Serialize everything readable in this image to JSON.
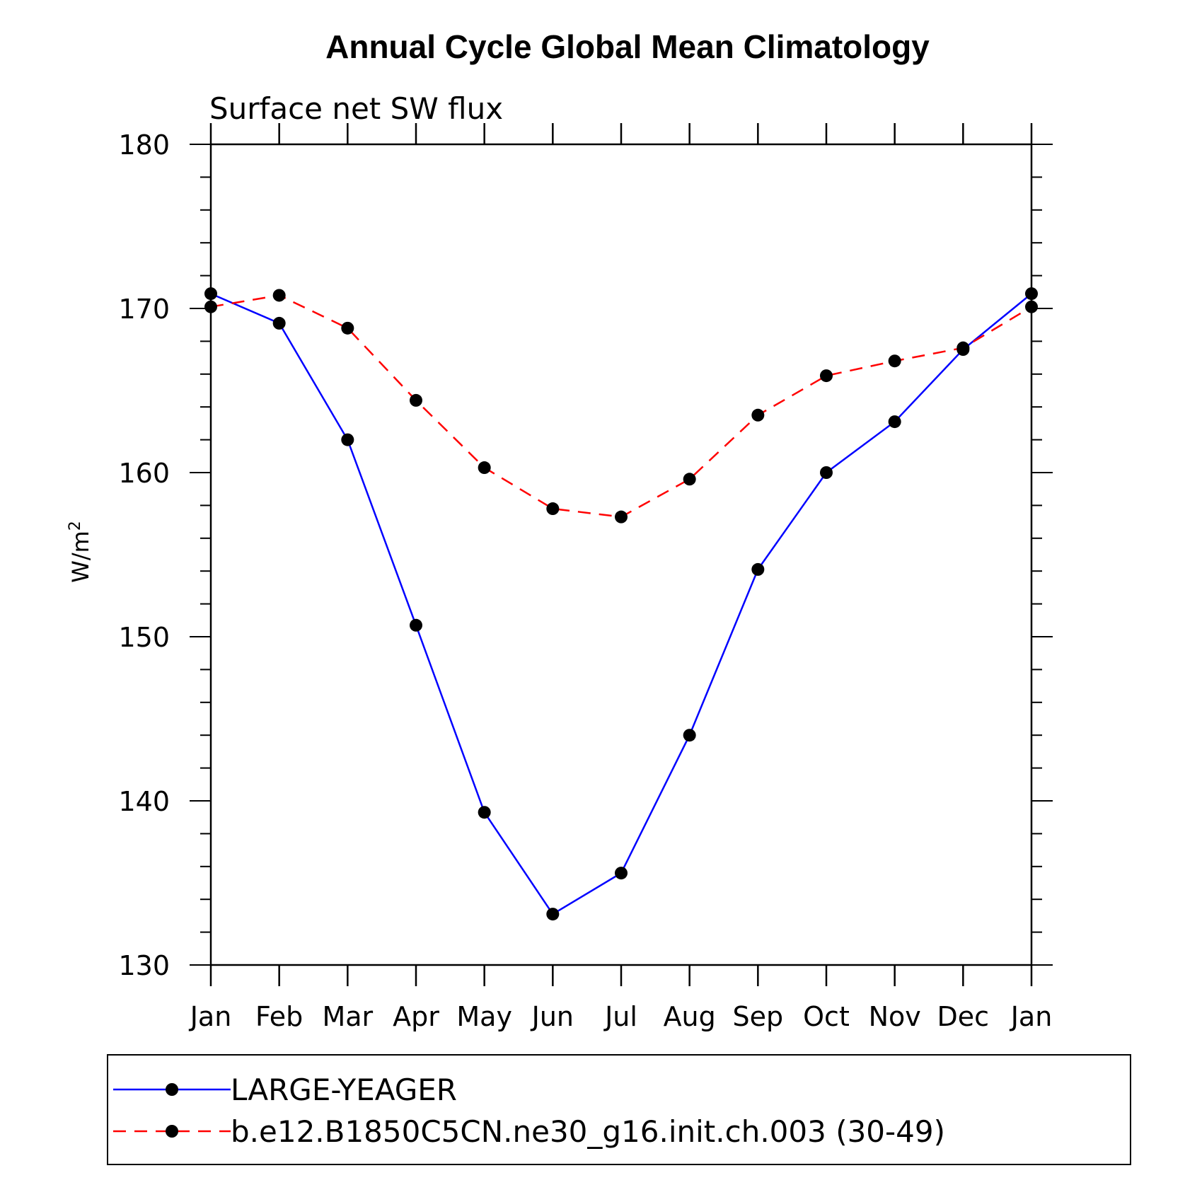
{
  "chart_data": {
    "type": "line",
    "title": "Annual Cycle Global Mean Climatology",
    "subtitle": "Surface net SW flux",
    "ylabel": "W/m",
    "ylabel_sup": "2",
    "xlabel": "",
    "categories": [
      "Jan",
      "Feb",
      "Mar",
      "Apr",
      "May",
      "Jun",
      "Jul",
      "Aug",
      "Sep",
      "Oct",
      "Nov",
      "Dec",
      "Jan"
    ],
    "ylim": [
      130,
      180
    ],
    "yticks": [
      "130",
      "140",
      "150",
      "160",
      "170",
      "180"
    ],
    "grid": false,
    "legend_position": "bottom",
    "series": [
      {
        "name": "LARGE-YEAGER",
        "color": "#0000ff",
        "line_style": "solid",
        "marker": "filled-circle",
        "values": [
          170.9,
          169.1,
          162.0,
          150.7,
          139.3,
          133.1,
          135.6,
          144.0,
          154.1,
          160.0,
          163.1,
          167.5,
          170.9
        ]
      },
      {
        "name": "b.e12.B1850C5CN.ne30_g16.init.ch.003 (30-49)",
        "color": "#ff0000",
        "line_style": "dashed",
        "marker": "filled-circle",
        "values": [
          170.1,
          170.8,
          168.8,
          164.4,
          160.3,
          157.8,
          157.3,
          159.6,
          163.5,
          165.9,
          166.8,
          167.6,
          170.1
        ]
      }
    ]
  }
}
